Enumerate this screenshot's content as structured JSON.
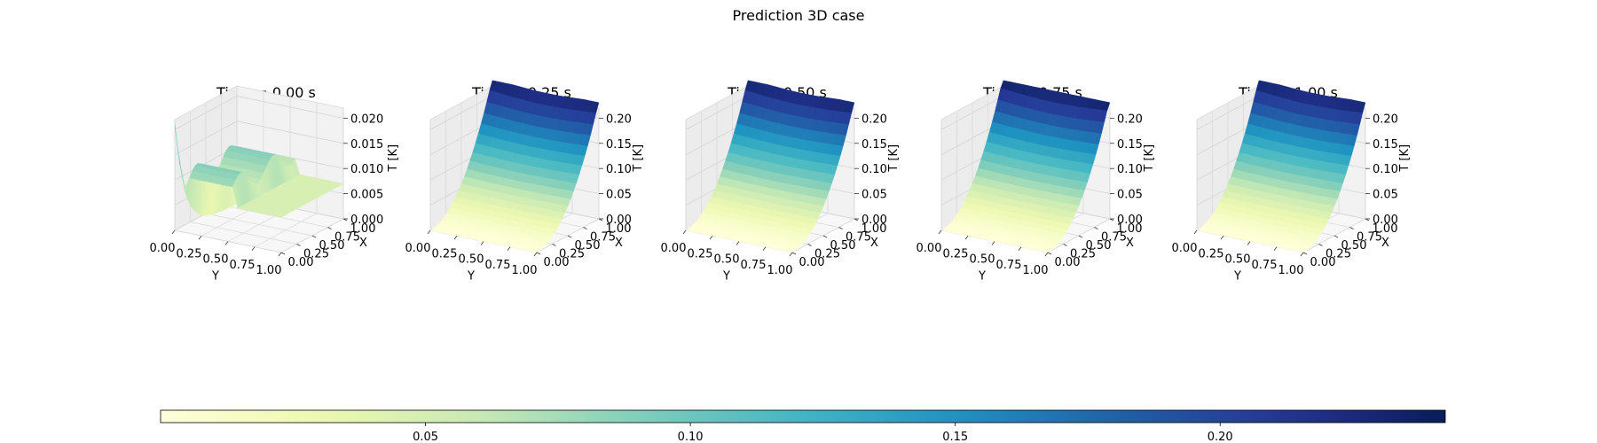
{
  "chart_data": {
    "type": "surface3d",
    "title": "Prediction 3D case",
    "colormap": "YlGnBu",
    "color_range": [
      0.0,
      0.24
    ],
    "colorbar_ticks": [
      "0.05",
      "0.10",
      "0.15",
      "0.20"
    ],
    "colorbar_tick_values": [
      0.05,
      0.1,
      0.15,
      0.2
    ],
    "panels": [
      {
        "title": "Time = 0.00 s",
        "time": 0.0,
        "xlabel": "Y",
        "ylabel": "X",
        "zlabel": "T [K]",
        "x_ticks": [
          "0.00",
          "0.25",
          "0.50",
          "0.75",
          "1.00"
        ],
        "y_ticks": [
          "0.00",
          "0.25",
          "0.50",
          "0.75",
          "1.00"
        ],
        "z_ticks": [
          "0.000",
          "0.005",
          "0.010",
          "0.015",
          "0.020"
        ],
        "z_tick_values": [
          0.0,
          0.005,
          0.01,
          0.015,
          0.02
        ],
        "zlim": [
          0.0,
          0.022
        ],
        "surface": "initial_condition"
      },
      {
        "title": "Time = 0.25 s",
        "time": 0.25,
        "xlabel": "Y",
        "ylabel": "X",
        "zlabel": "T [K]",
        "x_ticks": [
          "0.00",
          "0.25",
          "0.50",
          "0.75",
          "1.00"
        ],
        "y_ticks": [
          "0.00",
          "0.25",
          "0.50",
          "0.75",
          "1.00"
        ],
        "z_ticks": [
          "0.00",
          "0.05",
          "0.10",
          "0.15",
          "0.20"
        ],
        "z_tick_values": [
          0.0,
          0.05,
          0.1,
          0.15,
          0.2
        ],
        "zlim": [
          0.0,
          0.22
        ],
        "surface": "quadratic_in_x",
        "max_value": 0.235
      },
      {
        "title": "Time = 0.50 s",
        "time": 0.5,
        "xlabel": "Y",
        "ylabel": "X",
        "zlabel": "T [K]",
        "x_ticks": [
          "0.00",
          "0.25",
          "0.50",
          "0.75",
          "1.00"
        ],
        "y_ticks": [
          "0.00",
          "0.25",
          "0.50",
          "0.75",
          "1.00"
        ],
        "z_ticks": [
          "0.00",
          "0.05",
          "0.10",
          "0.15",
          "0.20"
        ],
        "z_tick_values": [
          0.0,
          0.05,
          0.1,
          0.15,
          0.2
        ],
        "zlim": [
          0.0,
          0.22
        ],
        "surface": "quadratic_in_x",
        "max_value": 0.235
      },
      {
        "title": "Time = 0.75 s",
        "time": 0.75,
        "xlabel": "Y",
        "ylabel": "X",
        "zlabel": "T [K]",
        "x_ticks": [
          "0.00",
          "0.25",
          "0.50",
          "0.75",
          "1.00"
        ],
        "y_ticks": [
          "0.00",
          "0.25",
          "0.50",
          "0.75",
          "1.00"
        ],
        "z_ticks": [
          "0.00",
          "0.05",
          "0.10",
          "0.15",
          "0.20"
        ],
        "z_tick_values": [
          0.0,
          0.05,
          0.1,
          0.15,
          0.2
        ],
        "zlim": [
          0.0,
          0.22
        ],
        "surface": "quadratic_in_x",
        "max_value": 0.24
      },
      {
        "title": "Time = 1.00 s",
        "time": 1.0,
        "xlabel": "Y",
        "ylabel": "X",
        "zlabel": "T [K]",
        "x_ticks": [
          "0.00",
          "0.25",
          "0.50",
          "0.75",
          "1.00"
        ],
        "y_ticks": [
          "0.00",
          "0.25",
          "0.50",
          "0.75",
          "1.00"
        ],
        "z_ticks": [
          "0.00",
          "0.05",
          "0.10",
          "0.15",
          "0.20"
        ],
        "z_tick_values": [
          0.0,
          0.05,
          0.1,
          0.15,
          0.2
        ],
        "zlim": [
          0.0,
          0.22
        ],
        "surface": "quadratic_in_x",
        "max_value": 0.235
      }
    ]
  }
}
